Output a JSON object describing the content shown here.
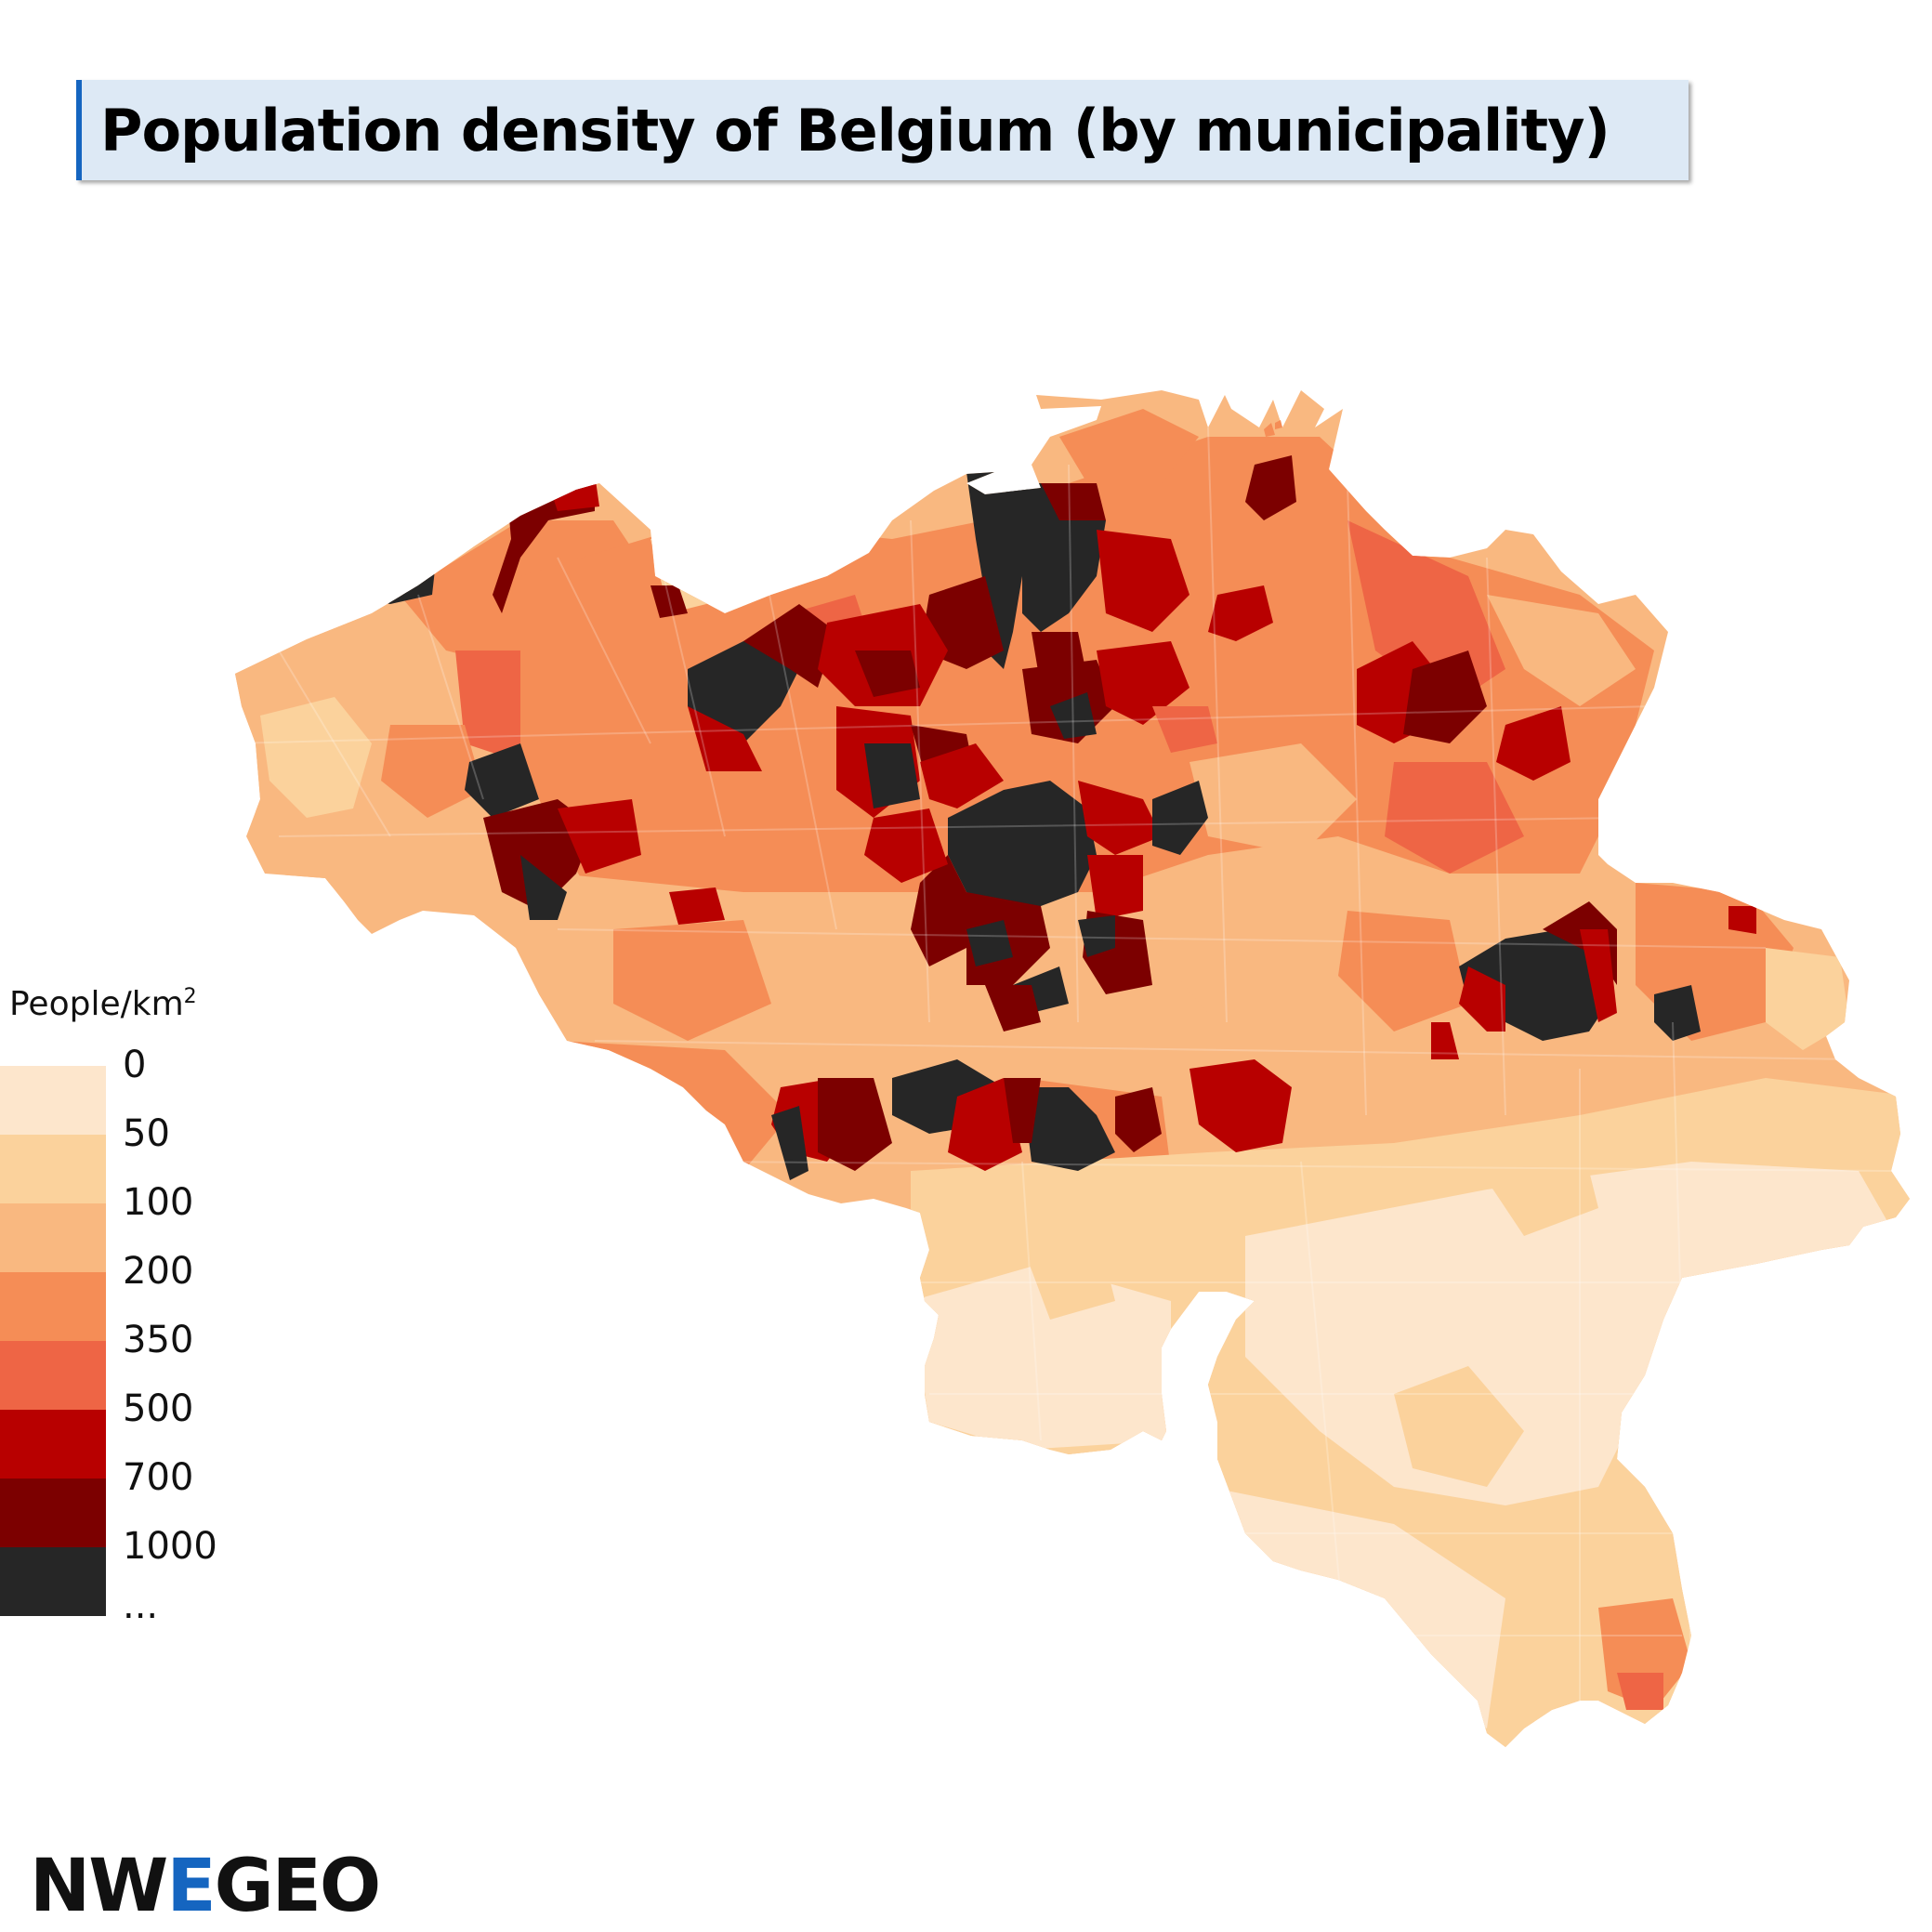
{
  "title": "Population density of Belgium (by municipality)",
  "legend": {
    "title": "People/km",
    "title_sup": "2",
    "classes": [
      {
        "label": "0",
        "color": "#fde6cc"
      },
      {
        "label": "50",
        "color": "#fbd29c"
      },
      {
        "label": "100",
        "color": "#f9b880"
      },
      {
        "label": "200",
        "color": "#f58d56"
      },
      {
        "label": "350",
        "color": "#ee6545"
      },
      {
        "label": "500",
        "color": "#b80000"
      },
      {
        "label": "700",
        "color": "#7c0000"
      },
      {
        "label": "1000",
        "color": "#262626"
      }
    ],
    "last_label": "..."
  },
  "logo": {
    "part1": "NW",
    "part2": "E",
    "part3": "GEO",
    "accent_color": "#1565c0"
  }
}
